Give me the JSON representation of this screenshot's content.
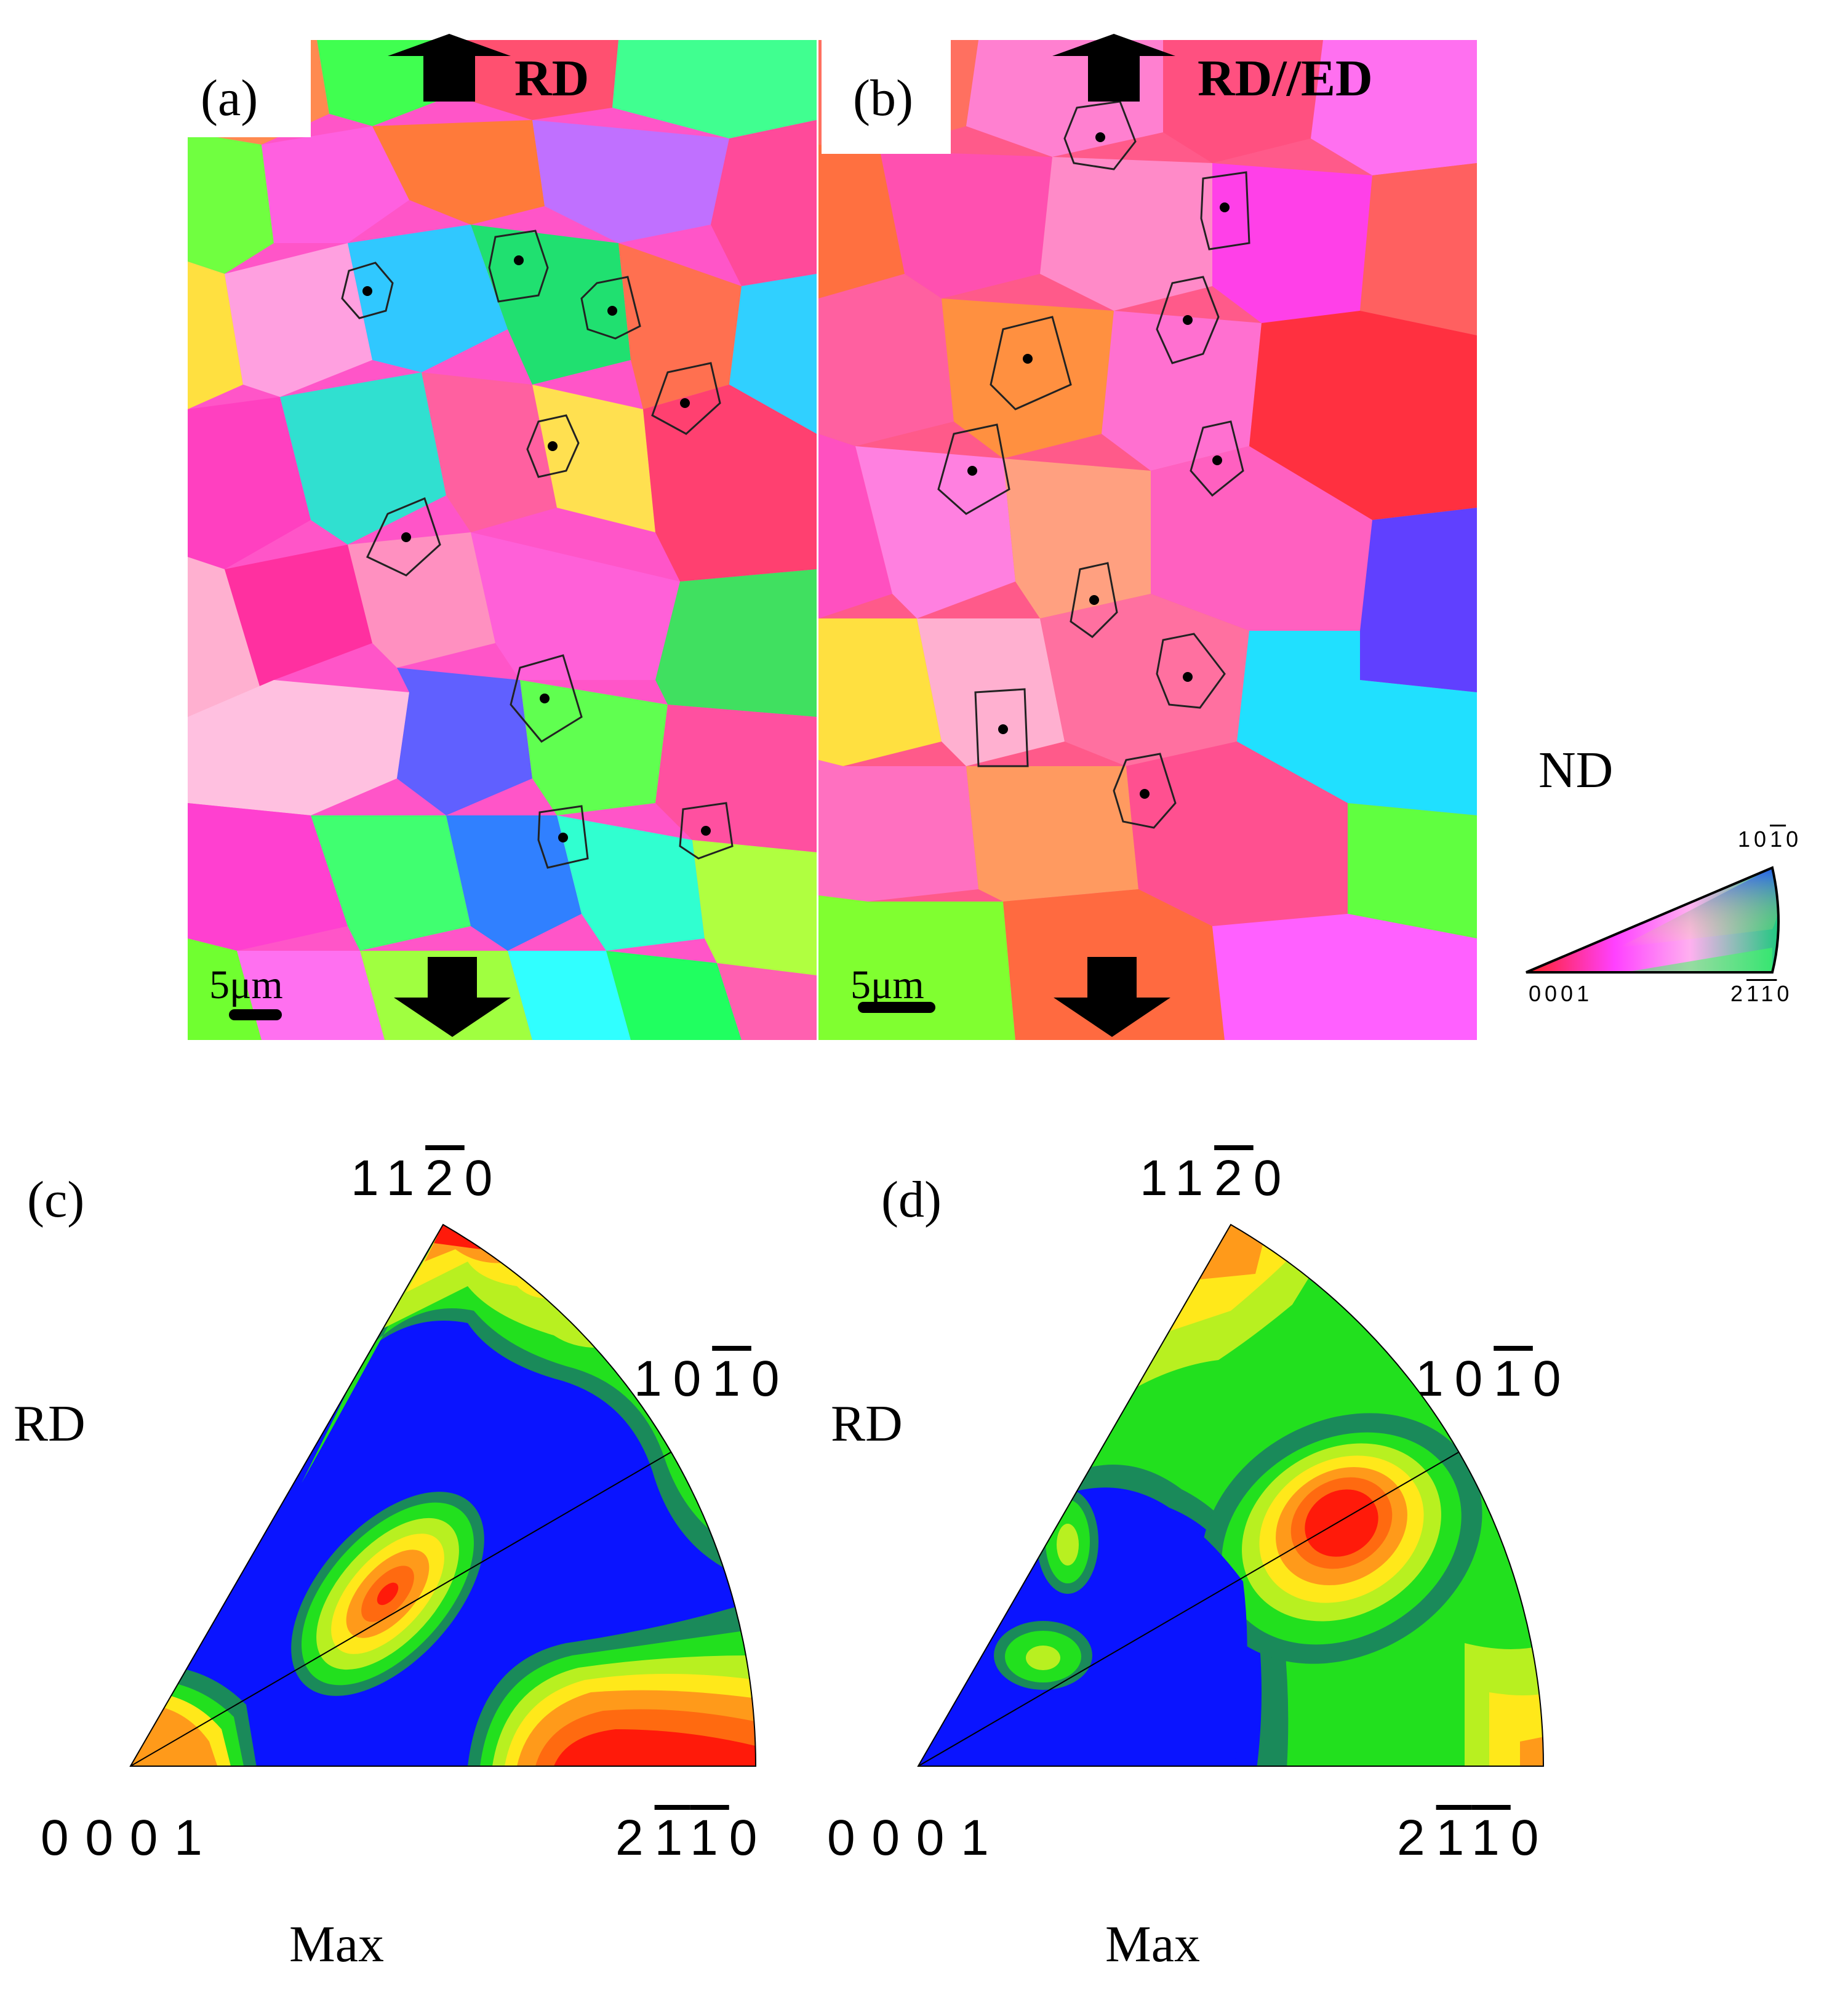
{
  "panels": {
    "a": {
      "label": "(a)",
      "direction": "RD",
      "scale_bar": "5μm"
    },
    "b": {
      "label": "(b)",
      "direction": "RD//ED",
      "scale_bar": "5μm"
    },
    "c": {
      "label": "(c)",
      "side_label": "RD",
      "max_label": "Max"
    },
    "d": {
      "label": "(d)",
      "side_label": "RD",
      "max_label": "Max"
    }
  },
  "legend": {
    "title": "ND",
    "corner_top": {
      "digits": [
        "1",
        "0",
        "1",
        "0"
      ],
      "overline": [
        false,
        false,
        true,
        false
      ]
    },
    "corner_left": "0001",
    "corner_right": {
      "digits": [
        "2",
        "1",
        "1",
        "0"
      ],
      "overline": [
        false,
        true,
        true,
        false
      ]
    }
  },
  "ipf_corners": {
    "top": {
      "digits": [
        "1",
        "1",
        "2",
        "0"
      ],
      "overline": [
        false,
        false,
        true,
        false
      ]
    },
    "mid": {
      "digits": [
        "1",
        "0",
        "1",
        "0"
      ],
      "overline": [
        false,
        false,
        true,
        false
      ]
    },
    "bottom_left": "0 0 0 1",
    "bottom_right": {
      "digits": [
        "2",
        "1",
        "1",
        "0"
      ],
      "overline": [
        false,
        true,
        true,
        false
      ]
    }
  },
  "colors": {
    "contour_blue": "#0a14ff",
    "contour_dark_green": "#1a8a5a",
    "contour_green": "#22e01e",
    "contour_yellow_green": "#b8f020",
    "contour_yellow": "#ffe81a",
    "contour_orange": "#ff9a1a",
    "contour_dark_orange": "#ff6a10",
    "contour_red": "#ff1a0a"
  }
}
